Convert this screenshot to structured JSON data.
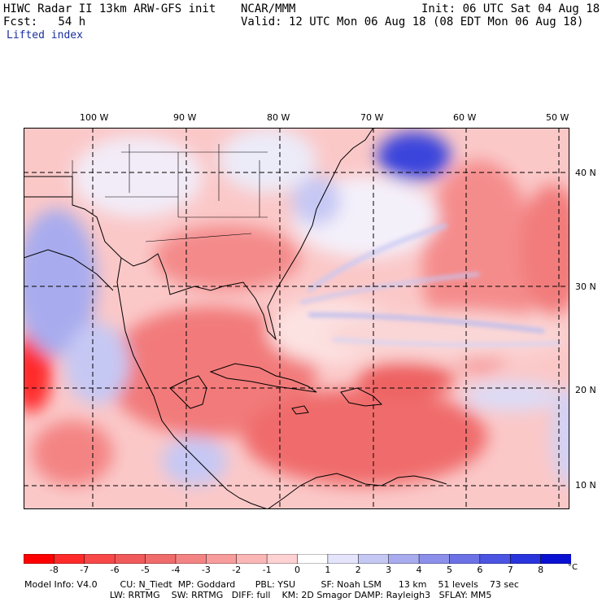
{
  "header": {
    "line1_left": "HIWC Radar II 13km ARW-GFS init",
    "line1_mid": "NCAR/MMM",
    "line1_right": "Init: 06 UTC Sat 04 Aug 18",
    "line2_left": "Fcst:   54 h",
    "line2_right": "Valid: 12 UTC Mon 06 Aug 18 (08 EDT Mon 06 Aug 18)",
    "field": "Lifted index"
  },
  "lon_labels": [
    "100 W",
    "90 W",
    "80 W",
    "70 W",
    "60 W",
    "50 W"
  ],
  "lat_labels": [
    "40 N",
    "30 N",
    "20 N",
    "10 N"
  ],
  "colorbar": {
    "labels": [
      "-8",
      "-7",
      "-6",
      "-5",
      "-4",
      "-3",
      "-2",
      "-1",
      "0",
      "1",
      "2",
      "3",
      "4",
      "5",
      "6",
      "7",
      "8"
    ],
    "unit": "°C",
    "colors": [
      "#ff0000",
      "#ff2a2a",
      "#f84848",
      "#f05a5a",
      "#f06c6c",
      "#f48484",
      "#f89c9c",
      "#fbb6b6",
      "#fed2d2",
      "#ffffff",
      "#e4e4fa",
      "#c6c8f4",
      "#a8acee",
      "#8c90ea",
      "#6c72e6",
      "#4c54e2",
      "#2a34dc",
      "#0a10d2"
    ]
  },
  "model_info": {
    "line1": "Model Info: V4.0        CU: N_Tiedt  MP: Goddard       PBL: YSU         SF: Noah LSM      13 km    51 levels    73 sec",
    "line2": "                              LW: RRTMG    SW: RRTMG   DIFF: full    KM: 2D Smagor DAMP: Rayleigh3   SFLAY: MM5"
  }
}
